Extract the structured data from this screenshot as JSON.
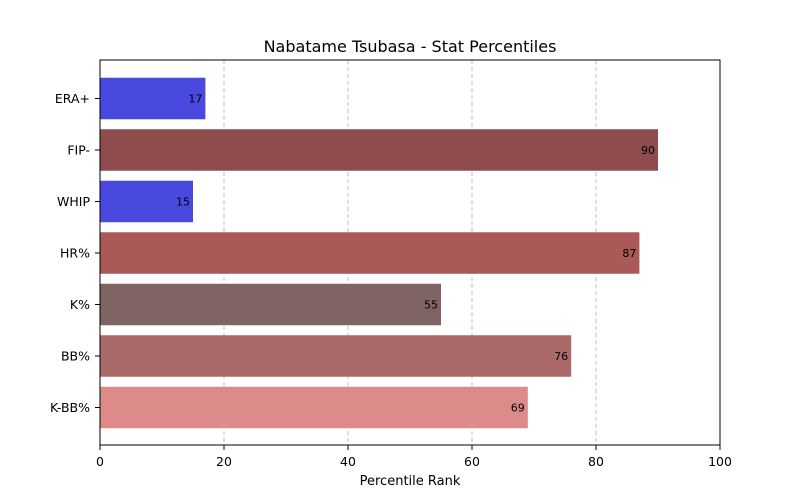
{
  "chart_data": {
    "type": "bar",
    "orientation": "horizontal",
    "title": "Nabatame Tsubasa - Stat Percentiles",
    "xlabel": "Percentile Rank",
    "ylabel": "",
    "xlim": [
      0,
      100
    ],
    "xticks": [
      0,
      20,
      40,
      60,
      80,
      100
    ],
    "grid": "x-dashed",
    "categories": [
      "ERA+",
      "FIP-",
      "WHIP",
      "HR%",
      "K%",
      "BB%",
      "K-BB%"
    ],
    "values": [
      17,
      90,
      15,
      87,
      55,
      76,
      69
    ],
    "colors": [
      "#4949df",
      "#8e4c4c",
      "#4949df",
      "#aa5858",
      "#806464",
      "#ab6a6a",
      "#dc8a8a"
    ]
  }
}
